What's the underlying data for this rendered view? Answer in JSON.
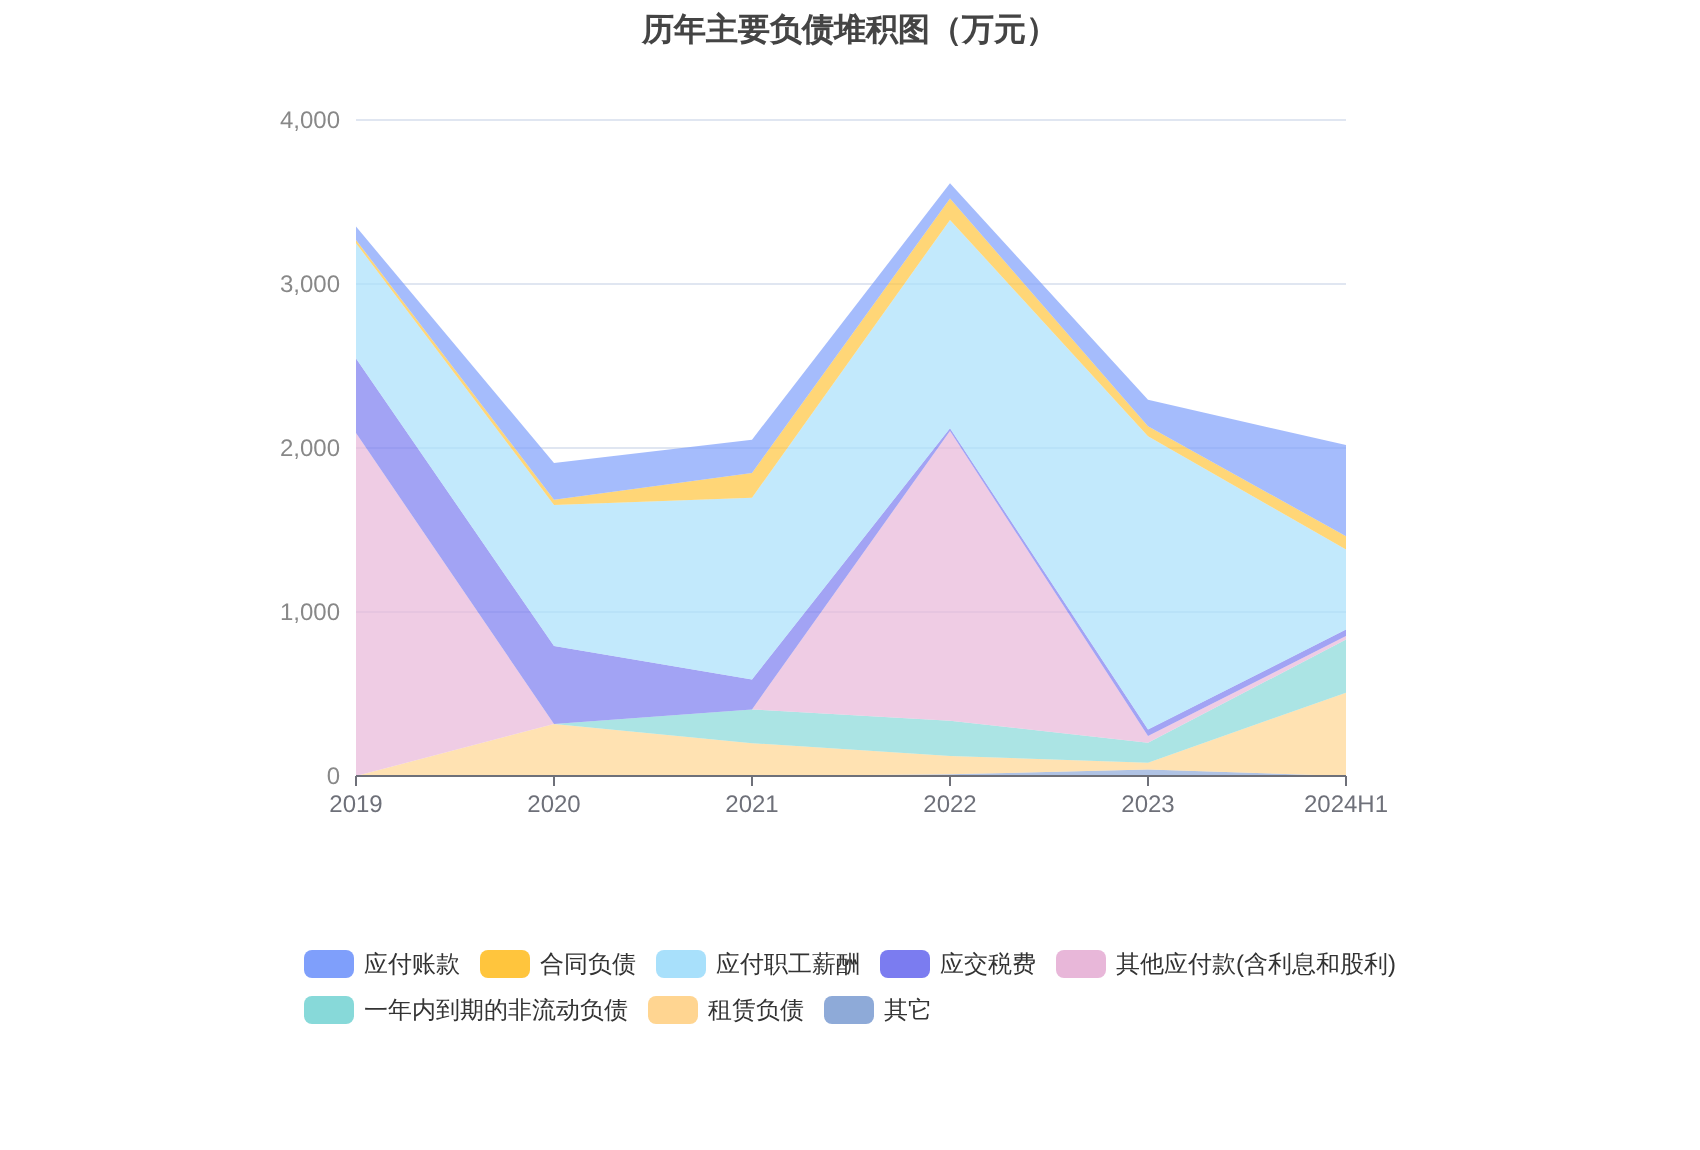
{
  "chart_data": {
    "type": "area",
    "title": "历年主要负债堆积图（万元）",
    "stacked": true,
    "categories": [
      "2019",
      "2020",
      "2021",
      "2022",
      "2023",
      "2024H1"
    ],
    "series": [
      {
        "name": "其它",
        "color": "#8eaad8",
        "values": [
          0,
          0,
          0,
          10,
          40,
          0
        ]
      },
      {
        "name": "租赁负债",
        "color": "#ffd591",
        "values": [
          0,
          317,
          200,
          112,
          41,
          508
        ]
      },
      {
        "name": "一年内到期的非流动负债",
        "color": "#87d9d9",
        "values": [
          0,
          0,
          206,
          215,
          122,
          324
        ]
      },
      {
        "name": "其他应付款(含利息和股利)",
        "color": "#e8b7d9",
        "values": [
          2091,
          0,
          0,
          1767,
          41,
          21
        ]
      },
      {
        "name": "应交税费",
        "color": "#7b7cf0",
        "values": [
          455,
          475,
          183,
          16,
          40,
          40
        ]
      },
      {
        "name": "应付职工薪酬",
        "color": "#a8e0fb",
        "values": [
          703,
          861,
          1108,
          1271,
          1787,
          488
        ]
      },
      {
        "name": "合同负债",
        "color": "#ffc53d",
        "values": [
          20,
          32,
          151,
          130,
          61,
          81
        ]
      },
      {
        "name": "应付账款",
        "color": "#7f9ffb",
        "values": [
          81,
          224,
          203,
          93,
          162,
          556
        ]
      }
    ],
    "ylim": [
      0,
      4000
    ],
    "yticks": [
      0,
      {
        "value": 1000,
        "label": "1,000"
      },
      {
        "value": 2000,
        "label": "2,000"
      },
      {
        "value": 3000,
        "label": "3,000"
      },
      {
        "value": 4000,
        "label": "4,000"
      }
    ],
    "grid": "y",
    "legend": "bottom"
  }
}
